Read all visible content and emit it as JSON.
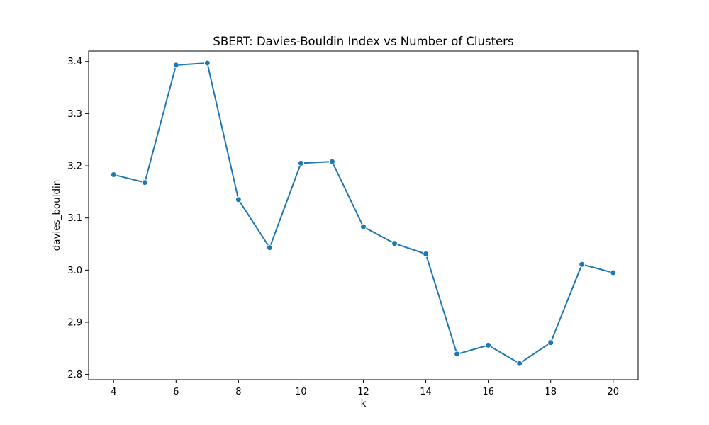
{
  "chart_data": {
    "type": "line",
    "title": "SBERT: Davies-Bouldin Index vs Number of Clusters",
    "xlabel": "k",
    "ylabel": "davies_bouldin",
    "xlim": [
      3.2,
      20.8
    ],
    "ylim": [
      2.79,
      3.42
    ],
    "x_ticks": [
      4,
      6,
      8,
      10,
      12,
      14,
      16,
      18,
      20
    ],
    "y_ticks": [
      "2.8",
      "2.9",
      "3.0",
      "3.1",
      "3.2",
      "3.3",
      "3.4"
    ],
    "grid": false,
    "legend": "none",
    "series": [
      {
        "color": "#1f77b4",
        "marker": "circle",
        "x": [
          4,
          5,
          6,
          7,
          8,
          9,
          10,
          11,
          12,
          13,
          14,
          15,
          16,
          17,
          18,
          19,
          20
        ],
        "y": [
          3.183,
          3.168,
          3.393,
          3.397,
          3.135,
          3.043,
          3.205,
          3.208,
          3.083,
          3.051,
          3.031,
          2.839,
          2.856,
          2.821,
          2.861,
          3.011,
          2.995
        ]
      }
    ]
  }
}
